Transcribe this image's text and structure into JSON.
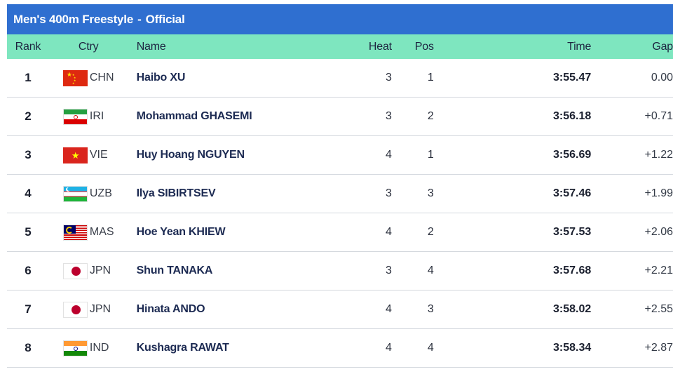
{
  "title": {
    "event": "Men's 400m Freestyle",
    "separator": "-",
    "status": "Official"
  },
  "columns": {
    "rank": "Rank",
    "ctry": "Ctry",
    "name": "Name",
    "heat": "Heat",
    "pos": "Pos",
    "time": "Time",
    "gap": "Gap"
  },
  "rows": [
    {
      "rank": "1",
      "ctry": "CHN",
      "flag": "china-flag-icon",
      "name": "Haibo XU",
      "heat": "3",
      "pos": "1",
      "time": "3:55.47",
      "gap": "0.00"
    },
    {
      "rank": "2",
      "ctry": "IRI",
      "flag": "iran-flag-icon",
      "name": "Mohammad GHASEMI",
      "heat": "3",
      "pos": "2",
      "time": "3:56.18",
      "gap": "+0.71"
    },
    {
      "rank": "3",
      "ctry": "VIE",
      "flag": "vietnam-flag-icon",
      "name": "Huy Hoang NGUYEN",
      "heat": "4",
      "pos": "1",
      "time": "3:56.69",
      "gap": "+1.22"
    },
    {
      "rank": "4",
      "ctry": "UZB",
      "flag": "uzbekistan-flag-icon",
      "name": "Ilya SIBIRTSEV",
      "heat": "3",
      "pos": "3",
      "time": "3:57.46",
      "gap": "+1.99"
    },
    {
      "rank": "5",
      "ctry": "MAS",
      "flag": "malaysia-flag-icon",
      "name": "Hoe Yean KHIEW",
      "heat": "4",
      "pos": "2",
      "time": "3:57.53",
      "gap": "+2.06"
    },
    {
      "rank": "6",
      "ctry": "JPN",
      "flag": "japan-flag-icon",
      "name": "Shun TANAKA",
      "heat": "3",
      "pos": "4",
      "time": "3:57.68",
      "gap": "+2.21"
    },
    {
      "rank": "7",
      "ctry": "JPN",
      "flag": "japan-flag-icon",
      "name": "Hinata ANDO",
      "heat": "4",
      "pos": "3",
      "time": "3:58.02",
      "gap": "+2.55"
    },
    {
      "rank": "8",
      "ctry": "IND",
      "flag": "india-flag-icon",
      "name": "Kushagra RAWAT",
      "heat": "4",
      "pos": "4",
      "time": "3:58.34",
      "gap": "+2.87"
    }
  ],
  "colors": {
    "title_bar": "#2f6fd0",
    "header_row": "#7ee6bf",
    "row_divider": "#d4d8de"
  }
}
